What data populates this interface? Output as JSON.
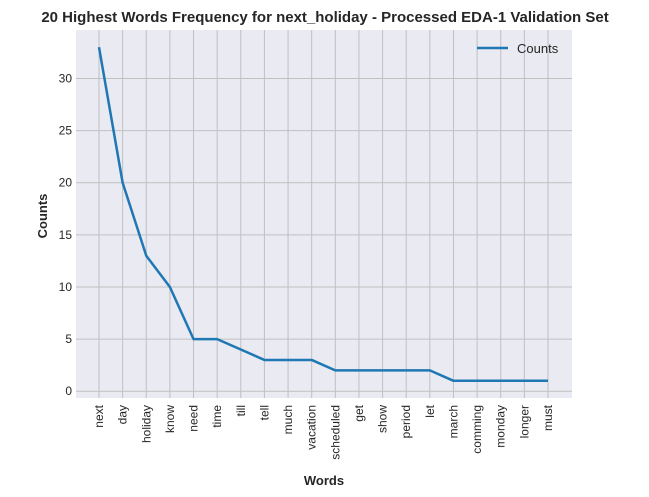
{
  "chart_data": {
    "type": "line",
    "title": "20 Highest Words Frequency for next_holiday - Processed EDA-1 Validation Set",
    "xlabel": "Words",
    "ylabel": "Counts",
    "categories": [
      "next",
      "day",
      "holiday",
      "know",
      "need",
      "time",
      "till",
      "tell",
      "much",
      "vacation",
      "scheduled",
      "get",
      "show",
      "period",
      "let",
      "march",
      "comming",
      "monday",
      "longer",
      "must"
    ],
    "series": [
      {
        "name": "Counts",
        "values": [
          33,
          20,
          13,
          10,
          5,
          5,
          4,
          3,
          3,
          3,
          2,
          2,
          2,
          2,
          2,
          1,
          1,
          1,
          1,
          1
        ]
      }
    ],
    "ylim": [
      -0.65,
      34.65
    ],
    "yticks": [
      0,
      5,
      10,
      15,
      20,
      25,
      30
    ],
    "grid": true,
    "legend": "top-right",
    "colors": {
      "line": "#1f77b4",
      "background": "#eaeaf2",
      "grid": "#c0c0c0"
    }
  }
}
